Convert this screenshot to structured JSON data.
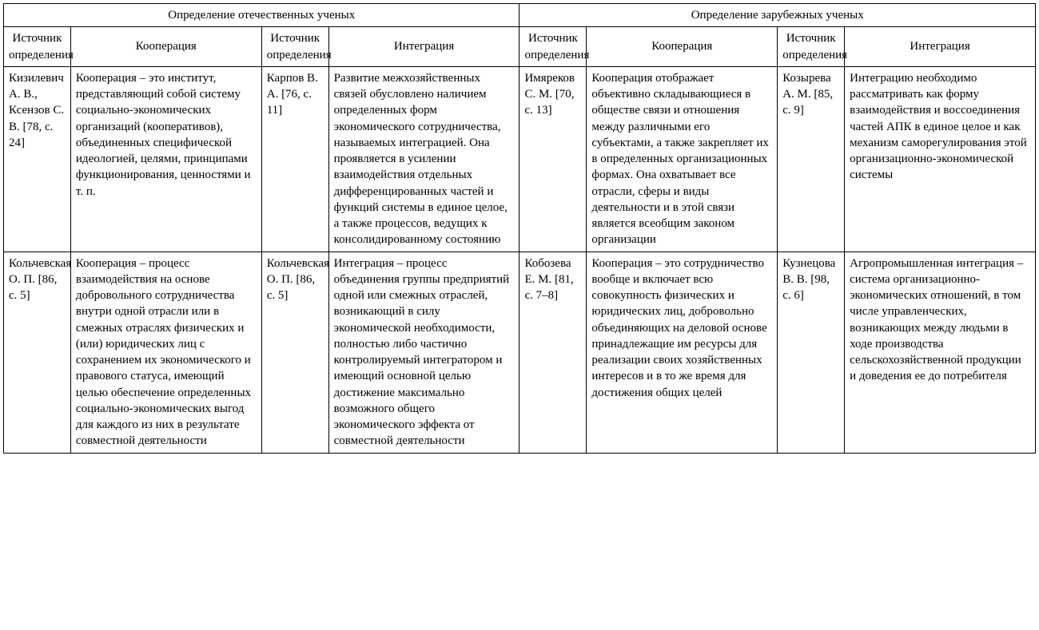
{
  "headers": {
    "group_left": "Определение отечественных ученых",
    "group_right": "Определение зарубежных ученых",
    "source": "Источник определения",
    "cooperation": "Кооперация",
    "integration": "Интеграция"
  },
  "rows": [
    {
      "l_src_coop": "Кизилевич А. В., Ксензов С. В. [78, с. 24]",
      "l_coop": "Кооперация – это институт, представляющий собой систему социально-экономических организаций (кооперативов), объединенных специфической идеологией, целями, принципами функционирования, ценностями и т. п.",
      "l_src_int": "Карпов В. А. [76, с. 11]",
      "l_int": "Развитие межхозяйственных связей обусловлено наличием определенных форм экономического сотрудничества, называемых интеграцией. Она проявляется в усилении взаимодействия отдельных дифференцированных частей и функций системы в единое целое, а также процессов, ведущих к консолидированному состоянию",
      "r_src_coop": "Имяреков С. М. [70, с. 13]",
      "r_coop": "Кооперация отображает объективно складывающиеся в обществе связи и отношения между различными его субъектами, а также закрепляет их в определенных организационных формах. Она охватывает все отрасли, сферы и виды деятельности и в этой связи является всеобщим законом организации",
      "r_src_int": "Козырева А. М. [85, с. 9]",
      "r_int": "Интеграцию необходимо рассматривать как форму взаимодействия и воссоединения частей АПК в единое целое и как механизм саморегулирования этой организационно-экономической системы"
    },
    {
      "l_src_coop": "Кольчевская О. П. [86, с. 5]",
      "l_coop": "Кооперация – процесс взаимодействия на основе добровольного сотрудничества внутри одной отрасли или в смежных отраслях физических и (или) юридических лиц с сохранением их экономического и правового статуса, имеющий целью обеспечение определенных социально-экономических выгод для каждого из них в результате совместной деятельности",
      "l_src_int": "Кольчевская О. П. [86, с. 5]",
      "l_int": "Интеграция – процесс объединения группы предприятий одной или смежных отраслей, возникающий в силу экономической необходимости, полностью либо частично контролируемый интегратором и имеющий основной целью достижение максимально возможного общего экономического эффекта от совместной деятельности",
      "r_src_coop": "Кобозева Е. М. [81, с. 7–8]",
      "r_coop": "Кооперация – это сотрудничество вообще и включает всю совокупность физических и юридических лиц, добровольно объединяющих на деловой основе принадлежащие им ресурсы для реализации своих хозяйственных интересов и в то же время для достижения общих целей",
      "r_src_int": "Кузнецова В. В. [98, с. 6]",
      "r_int": "Агропромышленная интеграция – система организационно-экономических отношений, в том числе управленческих, возникающих между людьми в ходе производства сельскохозяйственной продукции и доведения ее до потребителя"
    }
  ]
}
